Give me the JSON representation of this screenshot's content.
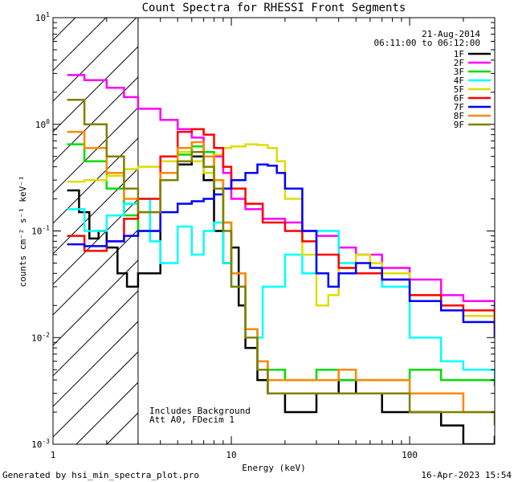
{
  "chart_data": {
    "type": "line",
    "title": "Count Spectra for RHESSI Front Segments",
    "xlabel": "Energy (keV)",
    "ylabel": "counts cm⁻² s⁻¹ keV⁻¹",
    "xscale": "log",
    "yscale": "log",
    "xlim": [
      1,
      300
    ],
    "ylim": [
      0.001,
      10
    ],
    "x_tick_labels": [
      {
        "value": 1,
        "label": "1"
      },
      {
        "value": 10,
        "label": "10"
      },
      {
        "value": 100,
        "label": "100"
      }
    ],
    "y_tick_labels": [
      {
        "value": 0.001,
        "base": "10",
        "exp": "-3"
      },
      {
        "value": 0.01,
        "base": "10",
        "exp": "-2"
      },
      {
        "value": 0.1,
        "base": "10",
        "exp": "-1"
      },
      {
        "value": 1,
        "base": "10",
        "exp": "0"
      },
      {
        "value": 10,
        "base": "10",
        "exp": "1"
      }
    ],
    "hatched_region": {
      "x_start": 1,
      "x_end": 3
    },
    "date": "21-Aug-2014",
    "time_range": "06:11:00 to 06:12:00",
    "annotations": [
      "Includes Background",
      "Att A0, FDecim 1"
    ],
    "legend_position": "top-right",
    "series": [
      {
        "name": "1F",
        "color": "#000000",
        "x": [
          1.2,
          1.4,
          1.6,
          1.8,
          2.0,
          2.3,
          2.6,
          3.0,
          4,
          5,
          6,
          7,
          8,
          9,
          10,
          11,
          12,
          14,
          16,
          20,
          25,
          30,
          40,
          50,
          70,
          100,
          150,
          200,
          300
        ],
        "y": [
          0.24,
          0.15,
          0.085,
          0.1,
          0.07,
          0.04,
          0.03,
          0.04,
          0.3,
          0.42,
          0.5,
          0.3,
          0.1,
          0.05,
          0.07,
          0.02,
          0.008,
          0.004,
          0.003,
          0.002,
          0.002,
          0.003,
          0.004,
          0.003,
          0.002,
          0.002,
          0.0015,
          0.001,
          0.0012
        ]
      },
      {
        "name": "2F",
        "color": "#ff00ff",
        "x": [
          1.2,
          1.5,
          2.0,
          2.5,
          3.0,
          4,
          5,
          6,
          7,
          8,
          9,
          10,
          12,
          15,
          20,
          25,
          30,
          40,
          50,
          70,
          100,
          150,
          200,
          300
        ],
        "y": [
          2.9,
          2.6,
          2.2,
          1.8,
          1.4,
          1.1,
          0.9,
          0.75,
          0.55,
          0.5,
          0.35,
          0.2,
          0.16,
          0.13,
          0.12,
          0.1,
          0.09,
          0.07,
          0.06,
          0.045,
          0.035,
          0.025,
          0.022,
          0.01
        ]
      },
      {
        "name": "3F",
        "color": "#00dd00",
        "x": [
          1.2,
          1.5,
          2.0,
          2.5,
          3.0,
          4,
          5,
          6,
          7,
          8,
          9,
          10,
          12,
          14,
          16,
          20,
          25,
          30,
          40,
          50,
          70,
          100,
          150,
          200,
          300
        ],
        "y": [
          0.65,
          0.45,
          0.25,
          0.14,
          0.1,
          0.3,
          0.52,
          0.62,
          0.55,
          0.3,
          0.12,
          0.04,
          0.012,
          0.006,
          0.005,
          0.004,
          0.004,
          0.005,
          0.004,
          0.004,
          0.004,
          0.005,
          0.004,
          0.004,
          0.0035
        ]
      },
      {
        "name": "4F",
        "color": "#00ffff",
        "x": [
          1.2,
          1.5,
          2.0,
          2.5,
          3.0,
          3.5,
          4,
          5,
          6,
          7,
          8,
          9,
          10,
          12,
          15,
          20,
          25,
          30,
          40,
          50,
          70,
          100,
          150,
          200,
          300
        ],
        "y": [
          0.16,
          0.1,
          0.14,
          0.18,
          0.2,
          0.08,
          0.05,
          0.11,
          0.06,
          0.1,
          0.12,
          0.05,
          0.03,
          0.01,
          0.03,
          0.06,
          0.04,
          0.1,
          0.05,
          0.04,
          0.03,
          0.01,
          0.006,
          0.005,
          0.004
        ]
      },
      {
        "name": "5F",
        "color": "#dddd00",
        "x": [
          1.2,
          1.5,
          2.0,
          2.5,
          3.0,
          4,
          5,
          6,
          7,
          8,
          9,
          10,
          12,
          14,
          16,
          18,
          20,
          25,
          30,
          35,
          40,
          50,
          60,
          70,
          100,
          150,
          200,
          300
        ],
        "y": [
          0.29,
          0.3,
          0.33,
          0.38,
          0.4,
          0.45,
          0.55,
          0.45,
          0.35,
          0.52,
          0.6,
          0.62,
          0.65,
          0.64,
          0.6,
          0.45,
          0.2,
          0.06,
          0.02,
          0.025,
          0.045,
          0.06,
          0.05,
          0.04,
          0.025,
          0.02,
          0.016,
          0.012
        ]
      },
      {
        "name": "6F",
        "color": "#ff0000",
        "x": [
          1.2,
          1.5,
          2.0,
          2.5,
          3.0,
          4,
          5,
          6,
          7,
          8,
          9,
          10,
          12,
          15,
          20,
          25,
          30,
          40,
          50,
          70,
          100,
          150,
          200,
          300
        ],
        "y": [
          0.09,
          0.065,
          0.08,
          0.13,
          0.2,
          0.5,
          0.85,
          0.9,
          0.8,
          0.6,
          0.4,
          0.25,
          0.18,
          0.12,
          0.1,
          0.08,
          0.06,
          0.045,
          0.04,
          0.035,
          0.025,
          0.02,
          0.018,
          0.012
        ]
      },
      {
        "name": "7F",
        "color": "#0000ff",
        "x": [
          1.2,
          1.5,
          2.0,
          2.5,
          3.0,
          4,
          5,
          6,
          7,
          8,
          9,
          10,
          12,
          14,
          16,
          18,
          20,
          25,
          30,
          35,
          40,
          50,
          60,
          70,
          100,
          150,
          200,
          300
        ],
        "y": [
          0.075,
          0.072,
          0.08,
          0.09,
          0.1,
          0.15,
          0.18,
          0.19,
          0.2,
          0.22,
          0.25,
          0.3,
          0.35,
          0.42,
          0.41,
          0.35,
          0.25,
          0.1,
          0.04,
          0.03,
          0.04,
          0.05,
          0.045,
          0.035,
          0.022,
          0.018,
          0.014,
          0.01
        ]
      },
      {
        "name": "8F",
        "color": "#ff8800",
        "x": [
          1.2,
          1.5,
          2.0,
          2.5,
          3.0,
          4,
          5,
          6,
          7,
          8,
          9,
          10,
          12,
          14,
          16,
          20,
          25,
          30,
          40,
          50,
          70,
          100,
          150,
          200,
          300
        ],
        "y": [
          0.85,
          0.6,
          0.35,
          0.2,
          0.15,
          0.35,
          0.6,
          0.68,
          0.5,
          0.3,
          0.12,
          0.04,
          0.012,
          0.006,
          0.004,
          0.004,
          0.004,
          0.004,
          0.005,
          0.004,
          0.004,
          0.003,
          0.003,
          0.002,
          0.002
        ]
      },
      {
        "name": "9F",
        "color": "#808000",
        "x": [
          1.2,
          1.5,
          2.0,
          2.5,
          3.0,
          4,
          5,
          6,
          7,
          8,
          9,
          10,
          12,
          14,
          16,
          20,
          25,
          30,
          40,
          50,
          70,
          100,
          150,
          200,
          300
        ],
        "y": [
          1.7,
          1.0,
          0.5,
          0.25,
          0.15,
          0.3,
          0.45,
          0.55,
          0.4,
          0.25,
          0.1,
          0.03,
          0.01,
          0.005,
          0.003,
          0.003,
          0.003,
          0.003,
          0.003,
          0.003,
          0.003,
          0.002,
          0.002,
          0.002,
          0.0015
        ]
      }
    ]
  },
  "footer": {
    "generated_by": "Generated by hsi_min_spectra_plot.pro",
    "timestamp": "16-Apr-2023 15:54"
  }
}
